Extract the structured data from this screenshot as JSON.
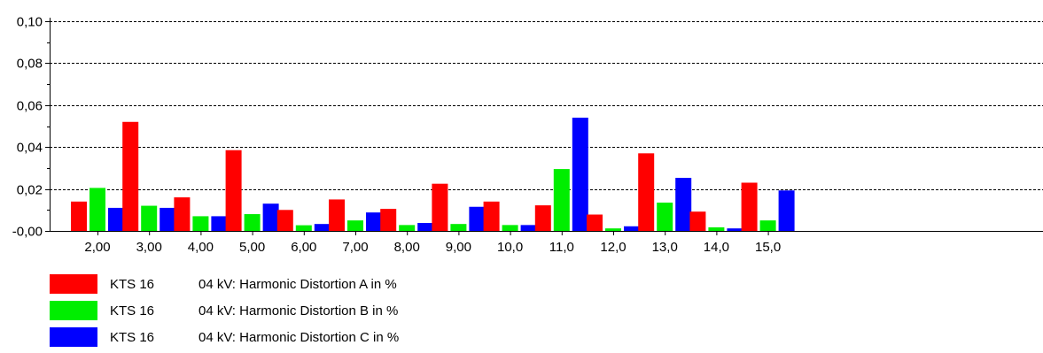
{
  "chart_data": {
    "type": "bar",
    "categories": [
      "2,00",
      "3,00",
      "4,00",
      "5,00",
      "6,00",
      "7,00",
      "8,00",
      "9,00",
      "10,0",
      "11,0",
      "12,0",
      "13,0",
      "14,0",
      "15,0"
    ],
    "ylim": [
      0,
      0.1
    ],
    "yticks": [
      0,
      0.02,
      0.04,
      0.06,
      0.08,
      0.1
    ],
    "ytick_labels": [
      "-0,00",
      "0,02",
      "0,04",
      "0,06",
      "0,08",
      "0,10"
    ],
    "grid": "horizontal dashed",
    "legend_position": "bottom-left",
    "series": [
      {
        "name": "KTS 16",
        "description": "04 kV: Harmonic Distortion A in %",
        "color": "#ff0000",
        "values": [
          0.014,
          0.052,
          0.016,
          0.0385,
          0.01,
          0.015,
          0.0105,
          0.0225,
          0.014,
          0.0122,
          0.0078,
          0.037,
          0.0092,
          0.023
        ]
      },
      {
        "name": "KTS 16",
        "description": "04 kV: Harmonic Distortion B in %",
        "color": "#00ee00",
        "values": [
          0.0205,
          0.012,
          0.007,
          0.008,
          0.0027,
          0.005,
          0.0028,
          0.0033,
          0.0028,
          0.0295,
          0.0012,
          0.0135,
          0.0017,
          0.005
        ]
      },
      {
        "name": "KTS 16",
        "description": "04 kV: Harmonic Distortion C in %",
        "color": "#0000ff",
        "values": [
          0.011,
          0.011,
          0.007,
          0.013,
          0.0033,
          0.0088,
          0.0038,
          0.0115,
          0.0028,
          0.054,
          0.0022,
          0.0253,
          0.0012,
          0.0193
        ]
      }
    ]
  }
}
